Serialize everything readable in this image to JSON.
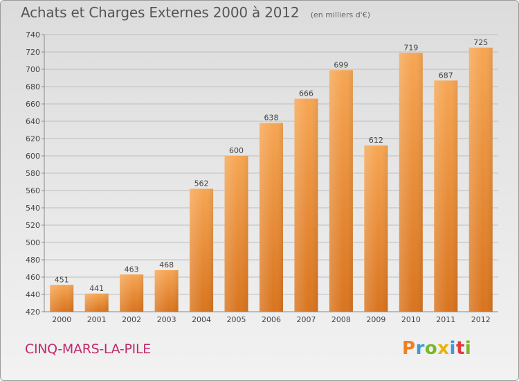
{
  "title": "Achats et Charges Externes 2000 à 2012",
  "subtitle": "(en milliers d'€)",
  "location": "CINQ-MARS-LA-PILE",
  "logo": {
    "letters": [
      "P",
      "r",
      "o",
      "x",
      "i",
      "t",
      "i"
    ],
    "colors": [
      "#f08020",
      "#3c9bd6",
      "#7ab829",
      "#e8b400",
      "#3c9bd6",
      "#e03c3c",
      "#7ab829"
    ]
  },
  "colors": {
    "bar_top": "#f6a653",
    "bar_bottom": "#d9741e",
    "grid": "#bdbdbd",
    "text": "#444444"
  },
  "chart_data": {
    "type": "bar",
    "categories": [
      "2000",
      "2001",
      "2002",
      "2003",
      "2004",
      "2005",
      "2006",
      "2007",
      "2008",
      "2009",
      "2010",
      "2011",
      "2012"
    ],
    "values": [
      451,
      441,
      463,
      468,
      562,
      600,
      638,
      666,
      699,
      612,
      719,
      687,
      725
    ],
    "title": "Achats et Charges Externes 2000 à 2012",
    "ylim": [
      420,
      740
    ],
    "yticks": [
      420,
      440,
      460,
      480,
      500,
      520,
      540,
      560,
      580,
      600,
      620,
      640,
      660,
      680,
      700,
      720,
      740
    ],
    "grid": true
  }
}
